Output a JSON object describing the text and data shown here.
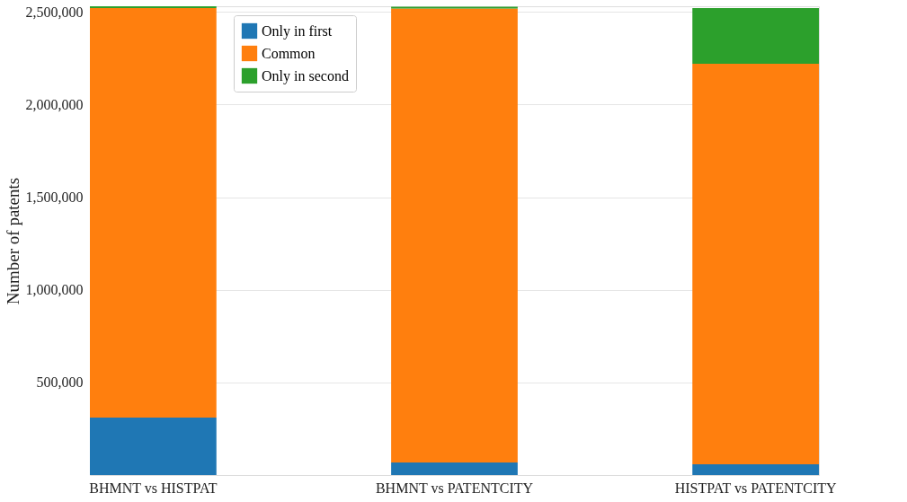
{
  "chart_data": {
    "type": "bar",
    "stacked": true,
    "ylabel": "Number of patents",
    "categories": [
      "BHMNT vs HISTPAT",
      "BHMNT vs PATENTCITY",
      "HISTPAT vs PATENTCITY"
    ],
    "series": [
      {
        "name": "Only in first",
        "color": "#1f77b4",
        "values": [
          310000,
          68000,
          58000
        ]
      },
      {
        "name": "Common",
        "color": "#ff7f0e",
        "values": [
          2210000,
          2450000,
          2162000
        ]
      },
      {
        "name": "Only in second",
        "color": "#2ca02c",
        "values": [
          10000,
          10000,
          300000
        ]
      }
    ],
    "ylim": [
      0,
      2530000
    ],
    "yticks": [
      {
        "value": 500000,
        "label": "500,000"
      },
      {
        "value": 1000000,
        "label": "1,000,000"
      },
      {
        "value": 1500000,
        "label": "1,500,000"
      },
      {
        "value": 2000000,
        "label": "2,000,000"
      },
      {
        "value": 2500000,
        "label": "2,500,000"
      }
    ],
    "grid": "y",
    "legend": "top"
  }
}
